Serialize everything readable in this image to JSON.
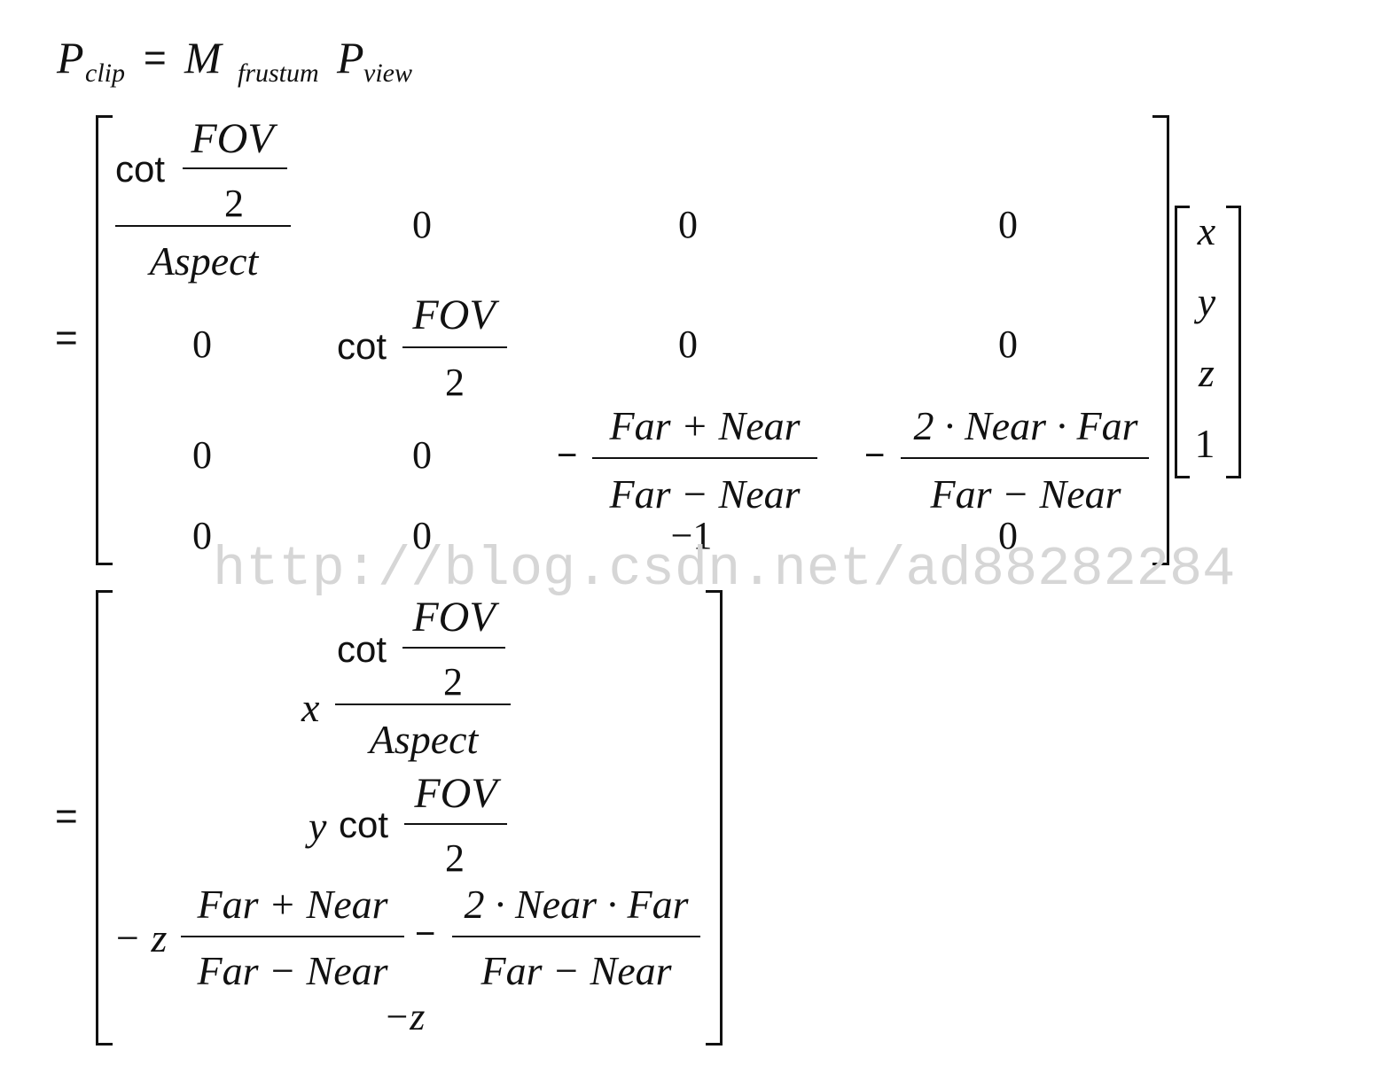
{
  "equation": {
    "line1": {
      "p": "P",
      "clip": "clip",
      "eq": "=",
      "m": "M",
      "frustum": "frustum",
      "p2": "P",
      "view": "view"
    },
    "matrix": {
      "cot": "cot",
      "fov": "FOV",
      "two": "2",
      "aspect": "Aspect",
      "zero": "0",
      "minus": "−",
      "far_plus_near": "Far + Near",
      "far_minus_near": "Far − Near",
      "two_near_far": "2 · Near · Far",
      "neg_one": "−1"
    },
    "vector": [
      "x",
      "y",
      "z",
      "1"
    ],
    "result": {
      "x": "x",
      "y": "y",
      "neg_z": "− z",
      "neg_z_last": "−z",
      "minus": "−"
    }
  },
  "watermark": "http://blog.csdn.net/ad88282284"
}
